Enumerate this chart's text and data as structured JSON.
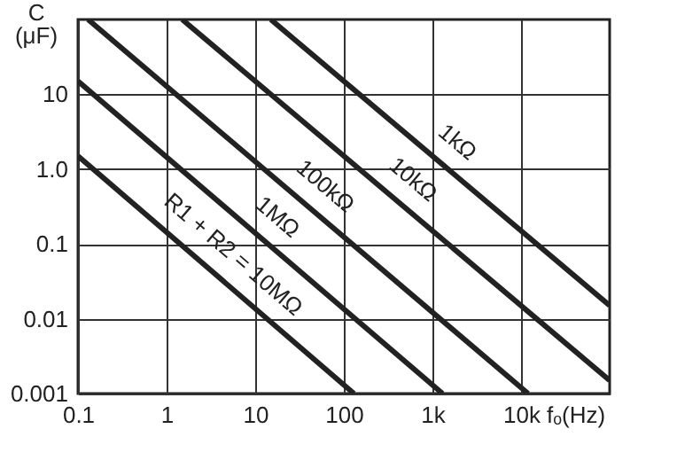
{
  "chart_data": {
    "type": "line",
    "xlabel": "fₒ(Hz)",
    "ylabel": "C\n(μF)",
    "log": "xy",
    "grid": true,
    "xlim": [
      0.1,
      100000
    ],
    "ylim": [
      0.001,
      100
    ],
    "xticks": [
      0.1,
      1,
      10,
      100,
      {
        "value": 1000,
        "label": "1k"
      },
      {
        "value": 10000,
        "label": "10k"
      }
    ],
    "yticks": [
      0.001,
      0.01,
      0.1,
      {
        "value": 1,
        "label": "1.0"
      },
      10
    ],
    "series": [
      {
        "name": "1kΩ",
        "color": "#222222",
        "x": [
          15,
          100000
        ],
        "values": [
          100,
          0.015
        ]
      },
      {
        "name": "10kΩ",
        "color": "#222222",
        "x": [
          1.5,
          100000
        ],
        "values": [
          100,
          0.0015
        ]
      },
      {
        "name": "100kΩ",
        "color": "#222222",
        "x": [
          0.13,
          12000
        ],
        "values": [
          100,
          0.001
        ]
      },
      {
        "name": "1MΩ",
        "color": "#222222",
        "x": [
          0.1,
          1300
        ],
        "values": [
          15,
          0.001
        ]
      },
      {
        "name": "R1 + R2 = 10MΩ",
        "color": "#222222",
        "x": [
          0.1,
          130
        ],
        "values": [
          1.5,
          0.001
        ]
      }
    ]
  }
}
